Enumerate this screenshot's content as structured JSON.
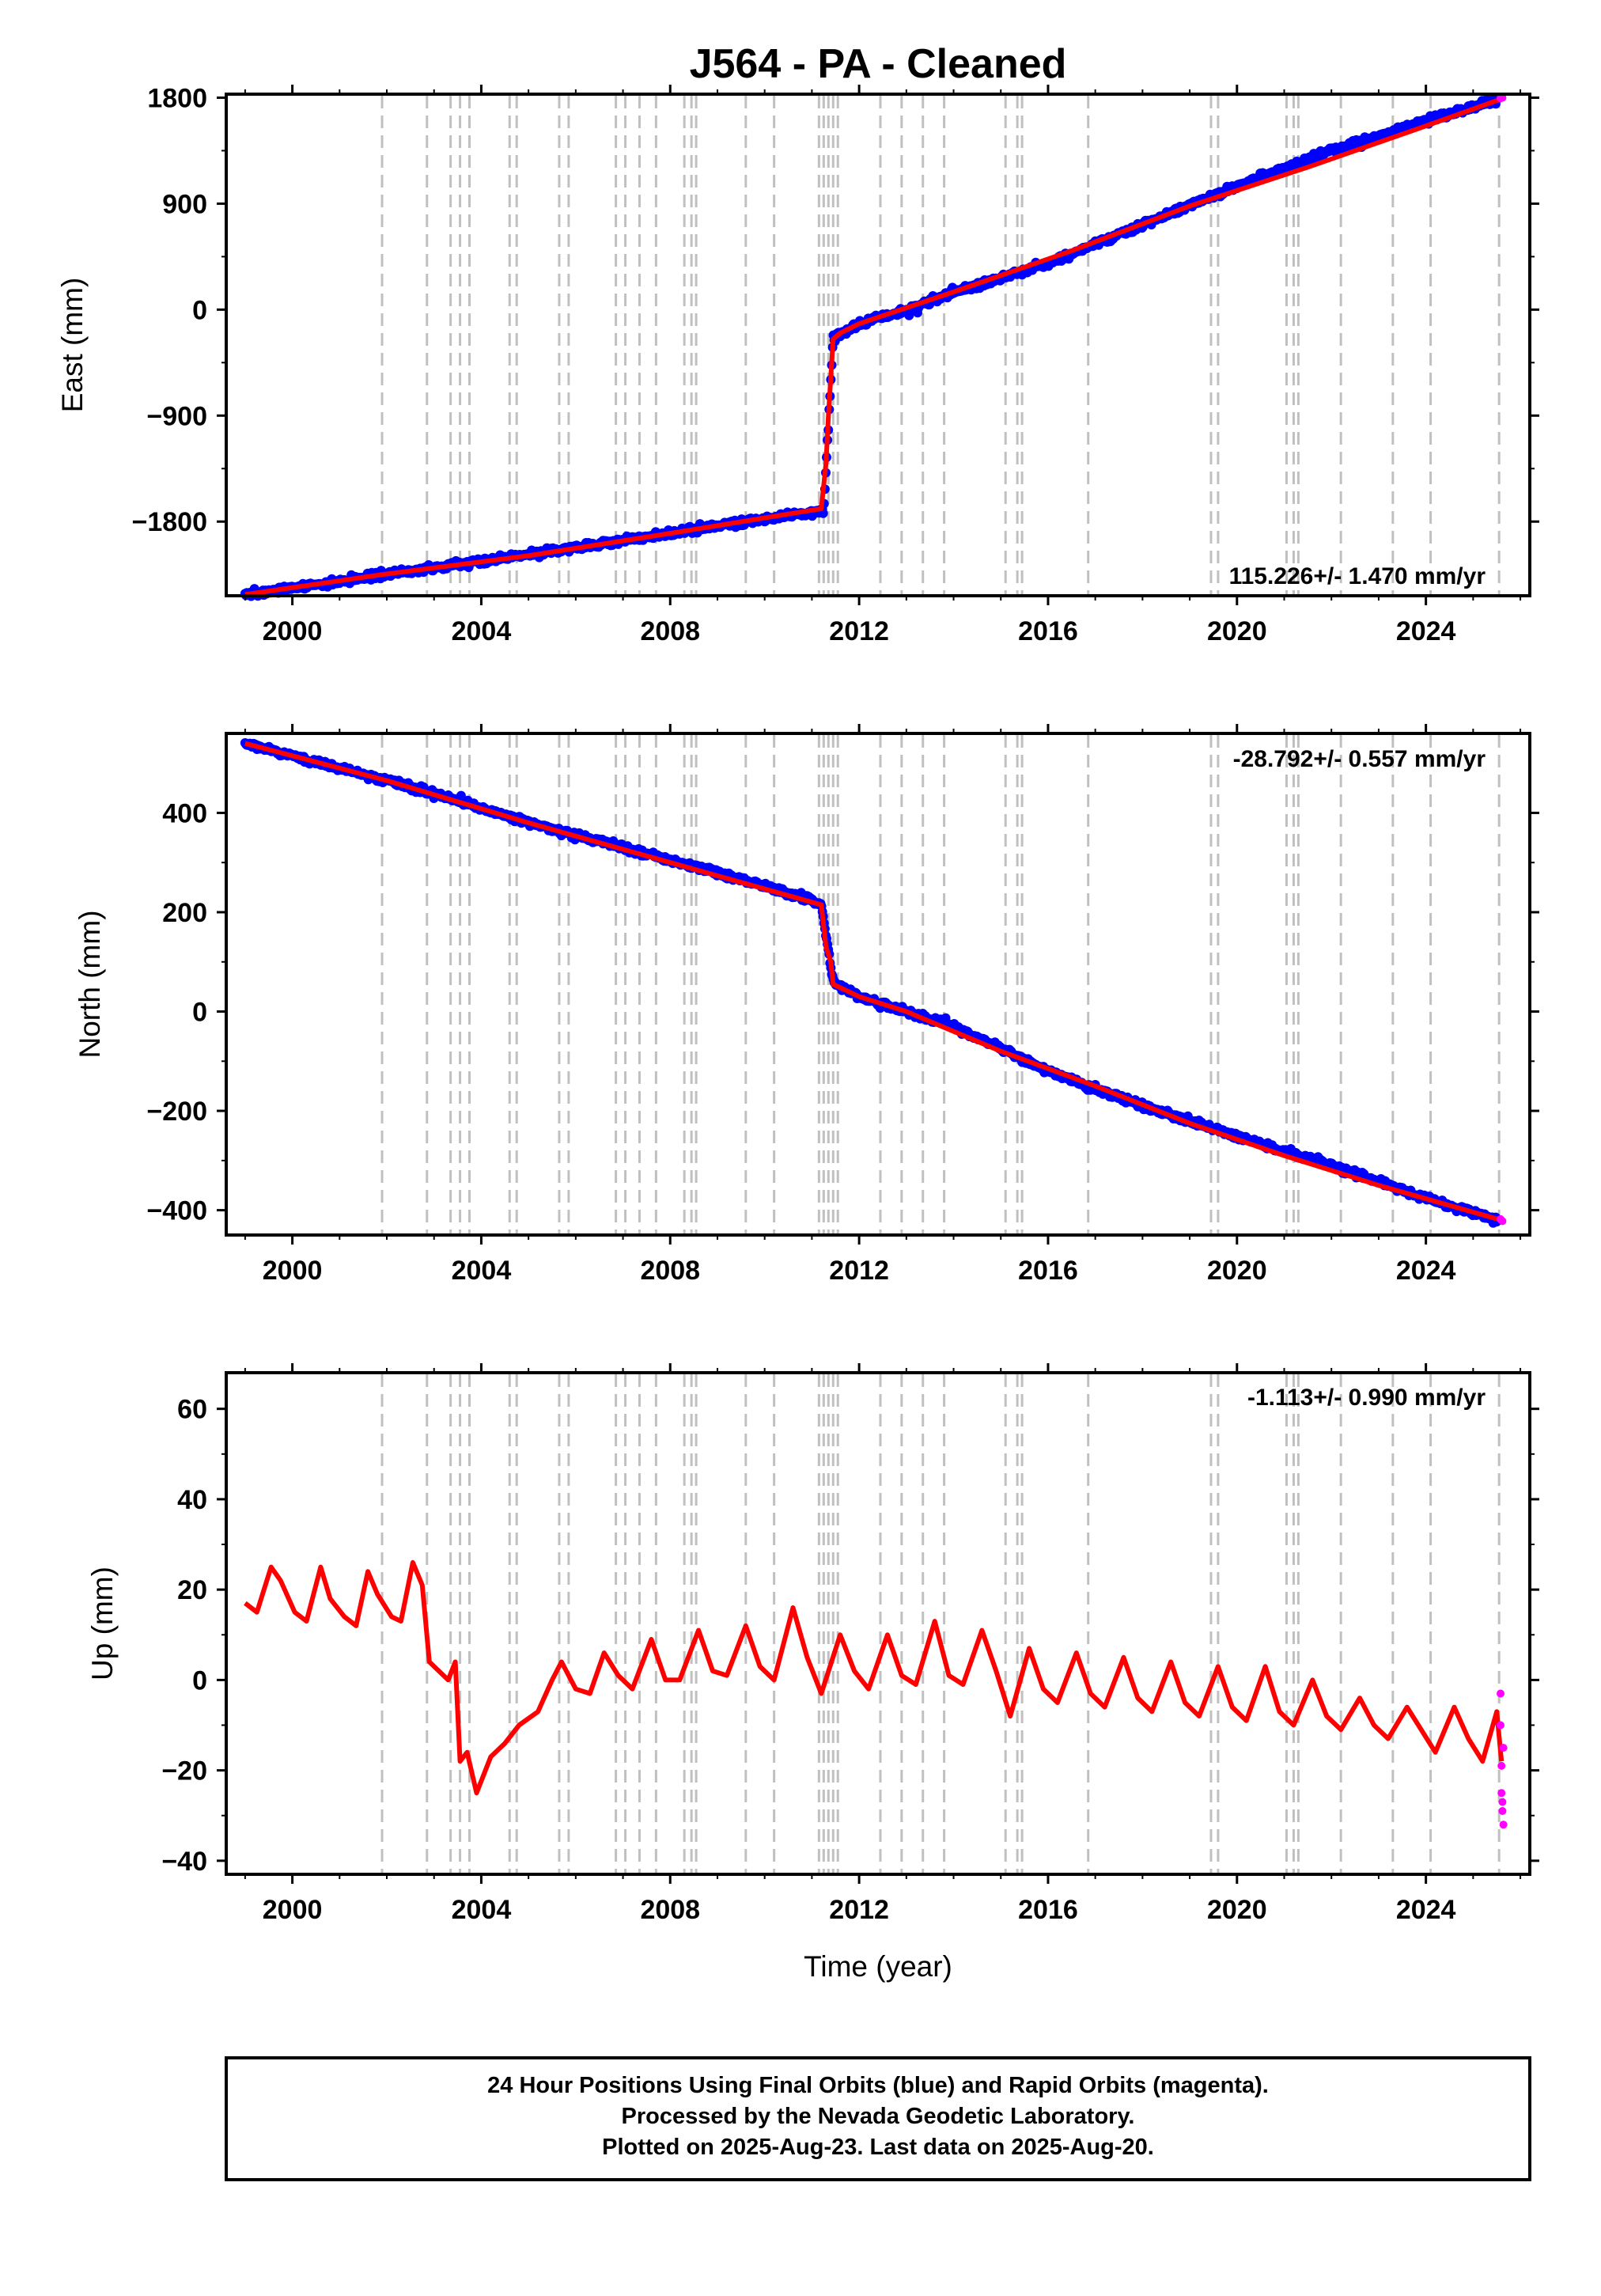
{
  "figure": {
    "title": "J564  - PA - Cleaned",
    "xlabel": "Time (year)",
    "footer_lines": [
      "24 Hour Positions Using Final Orbits (blue) and Rapid Orbits (magenta).",
      "Processed by the Nevada Geodetic Laboratory.",
      "Plotted on 2025-Aug-23. Last data on 2025-Aug-20."
    ]
  },
  "colors": {
    "final_orbits": "#0000ff",
    "rapid_orbits": "#ff00ff",
    "model": "#ff0000",
    "event_lines": "#c0c0c0"
  },
  "chart_data": [
    {
      "type": "scatter",
      "panel": "east",
      "ylabel": "East (mm)",
      "rate_text": "115.226+/- 1.470 mm/yr",
      "xlim": [
        1998.6,
        2026.2
      ],
      "ylim": [
        -2430,
        1830
      ],
      "yticks": [
        -1800,
        -900,
        0,
        900,
        1800
      ],
      "ytick_labels": [
        "−1800",
        "−900",
        "0",
        "900",
        "1800"
      ],
      "xticks": [
        2000,
        2004,
        2008,
        2012,
        2016,
        2020,
        2024
      ],
      "series": [
        {
          "type": "scatter",
          "color": "#0000ff",
          "values": [
            [
              1999.0,
              -2420
            ],
            [
              2001.0,
              -2310
            ],
            [
              2003.0,
              -2190
            ],
            [
              2005.0,
              -2080
            ],
            [
              2007.0,
              -1960
            ],
            [
              2009.0,
              -1840
            ],
            [
              2011.0,
              -1720
            ],
            [
              2011.25,
              -1700
            ],
            [
              2011.45,
              -250
            ],
            [
              2012.0,
              -120
            ],
            [
              2013.0,
              -10
            ],
            [
              2014.0,
              150
            ],
            [
              2016.0,
              390
            ],
            [
              2018.0,
              720
            ],
            [
              2020.0,
              1050
            ],
            [
              2022.0,
              1350
            ],
            [
              2024.0,
              1600
            ],
            [
              2025.5,
              1780
            ]
          ]
        },
        {
          "type": "line",
          "color": "#ff0000",
          "values": [
            [
              1999.0,
              -2420
            ],
            [
              2001.9,
              -2250
            ],
            [
              2005.0,
              -2090
            ],
            [
              2008.0,
              -1900
            ],
            [
              2011.2,
              -1690
            ],
            [
              2011.3,
              -1300
            ],
            [
              2011.35,
              -900
            ],
            [
              2011.45,
              -250
            ],
            [
              2011.6,
              -200
            ],
            [
              2012.0,
              -120
            ],
            [
              2014.0,
              150
            ],
            [
              2016.5,
              500
            ],
            [
              2019.0,
              880
            ],
            [
              2021.5,
              1210
            ],
            [
              2024.0,
              1560
            ],
            [
              2025.6,
              1790
            ]
          ]
        },
        {
          "type": "scatter",
          "color": "#ff00ff",
          "values": [
            [
              2025.58,
              1795
            ],
            [
              2025.62,
              1800
            ]
          ]
        }
      ]
    },
    {
      "type": "scatter",
      "panel": "north",
      "ylabel": "North (mm)",
      "rate_text": "-28.792+/- 0.557 mm/yr",
      "xlim": [
        1998.6,
        2026.2
      ],
      "ylim": [
        -450,
        560
      ],
      "yticks": [
        -400,
        -200,
        0,
        200,
        400
      ],
      "ytick_labels": [
        "−400",
        "−200",
        "0",
        "200",
        "400"
      ],
      "xticks": [
        2000,
        2004,
        2008,
        2012,
        2016,
        2020,
        2024
      ],
      "series": [
        {
          "type": "scatter",
          "color": "#0000ff",
          "values": [
            [
              1999.0,
              540
            ],
            [
              2001.0,
              490
            ],
            [
              2003.0,
              440
            ],
            [
              2005.0,
              380
            ],
            [
              2007.0,
              330
            ],
            [
              2009.0,
              280
            ],
            [
              2011.0,
              225
            ],
            [
              2011.2,
              215
            ],
            [
              2011.45,
              60
            ],
            [
              2012.0,
              30
            ],
            [
              2014.0,
              -30
            ],
            [
              2016.0,
              -120
            ],
            [
              2018.0,
              -190
            ],
            [
              2020.0,
              -250
            ],
            [
              2022.0,
              -310
            ],
            [
              2024.0,
              -375
            ],
            [
              2025.5,
              -420
            ]
          ]
        },
        {
          "type": "line",
          "color": "#ff0000",
          "values": [
            [
              1999.0,
              540
            ],
            [
              2002.0,
              465
            ],
            [
              2005.0,
              380
            ],
            [
              2008.0,
              300
            ],
            [
              2011.2,
              215
            ],
            [
              2011.3,
              130
            ],
            [
              2011.4,
              100
            ],
            [
              2011.45,
              55
            ],
            [
              2012.0,
              30
            ],
            [
              2013.0,
              0
            ],
            [
              2015.0,
              -80
            ],
            [
              2017.0,
              -150
            ],
            [
              2019.0,
              -225
            ],
            [
              2021.0,
              -290
            ],
            [
              2023.0,
              -350
            ],
            [
              2025.6,
              -420
            ]
          ]
        },
        {
          "type": "scatter",
          "color": "#ff00ff",
          "values": [
            [
              2025.58,
              -418
            ],
            [
              2025.62,
              -422
            ]
          ]
        }
      ]
    },
    {
      "type": "scatter",
      "panel": "up",
      "ylabel": "Up (mm)",
      "rate_text": "-1.113+/- 0.990 mm/yr",
      "xlim": [
        1998.6,
        2026.2
      ],
      "ylim": [
        -43,
        68
      ],
      "yticks": [
        -40,
        -20,
        0,
        20,
        40,
        60
      ],
      "ytick_labels": [
        "−40",
        "−20",
        "0",
        "20",
        "40",
        "60"
      ],
      "xticks": [
        2000,
        2004,
        2008,
        2012,
        2016,
        2020,
        2024
      ],
      "series": [
        {
          "type": "line",
          "color": "#ff0000",
          "values": [
            [
              1999.0,
              17
            ],
            [
              1999.25,
              15
            ],
            [
              1999.55,
              25
            ],
            [
              1999.75,
              22
            ],
            [
              2000.05,
              15
            ],
            [
              2000.3,
              13
            ],
            [
              2000.6,
              25
            ],
            [
              2000.8,
              18
            ],
            [
              2001.1,
              14
            ],
            [
              2001.35,
              12
            ],
            [
              2001.6,
              24
            ],
            [
              2001.8,
              19
            ],
            [
              2002.1,
              14
            ],
            [
              2002.3,
              13
            ],
            [
              2002.55,
              26
            ],
            [
              2002.75,
              21
            ],
            [
              2002.9,
              4
            ],
            [
              2003.3,
              0
            ],
            [
              2003.45,
              4
            ],
            [
              2003.55,
              -18
            ],
            [
              2003.7,
              -16
            ],
            [
              2003.9,
              -25
            ],
            [
              2004.2,
              -17
            ],
            [
              2004.5,
              -14
            ],
            [
              2004.8,
              -10
            ],
            [
              2005.2,
              -7
            ],
            [
              2005.5,
              0
            ],
            [
              2005.7,
              4
            ],
            [
              2006.0,
              -2
            ],
            [
              2006.3,
              -3
            ],
            [
              2006.6,
              6
            ],
            [
              2006.9,
              1
            ],
            [
              2007.2,
              -2
            ],
            [
              2007.6,
              9
            ],
            [
              2007.9,
              0
            ],
            [
              2008.2,
              0
            ],
            [
              2008.6,
              11
            ],
            [
              2008.9,
              2
            ],
            [
              2009.2,
              1
            ],
            [
              2009.6,
              12
            ],
            [
              2009.9,
              3
            ],
            [
              2010.2,
              0
            ],
            [
              2010.6,
              16
            ],
            [
              2010.9,
              5
            ],
            [
              2011.2,
              -3
            ],
            [
              2011.6,
              10
            ],
            [
              2011.9,
              2
            ],
            [
              2012.2,
              -2
            ],
            [
              2012.6,
              10
            ],
            [
              2012.9,
              1
            ],
            [
              2013.2,
              -1
            ],
            [
              2013.6,
              13
            ],
            [
              2013.9,
              1
            ],
            [
              2014.2,
              -1
            ],
            [
              2014.6,
              11
            ],
            [
              2014.9,
              2
            ],
            [
              2015.2,
              -8
            ],
            [
              2015.6,
              7
            ],
            [
              2015.9,
              -2
            ],
            [
              2016.2,
              -5
            ],
            [
              2016.6,
              6
            ],
            [
              2016.9,
              -3
            ],
            [
              2017.2,
              -6
            ],
            [
              2017.6,
              5
            ],
            [
              2017.9,
              -4
            ],
            [
              2018.2,
              -7
            ],
            [
              2018.6,
              4
            ],
            [
              2018.9,
              -5
            ],
            [
              2019.2,
              -8
            ],
            [
              2019.6,
              3
            ],
            [
              2019.9,
              -6
            ],
            [
              2020.2,
              -9
            ],
            [
              2020.6,
              3
            ],
            [
              2020.9,
              -7
            ],
            [
              2021.2,
              -10
            ],
            [
              2021.6,
              0
            ],
            [
              2021.9,
              -8
            ],
            [
              2022.2,
              -11
            ],
            [
              2022.6,
              -4
            ],
            [
              2022.9,
              -10
            ],
            [
              2023.2,
              -13
            ],
            [
              2023.6,
              -6
            ],
            [
              2023.9,
              -11
            ],
            [
              2024.2,
              -16
            ],
            [
              2024.6,
              -6
            ],
            [
              2024.9,
              -13
            ],
            [
              2025.2,
              -18
            ],
            [
              2025.5,
              -7
            ],
            [
              2025.6,
              -18
            ]
          ]
        },
        {
          "type": "scatter",
          "color": "#ff00ff",
          "values": [
            [
              2025.58,
              -3
            ],
            [
              2025.58,
              -10
            ],
            [
              2025.6,
              -19
            ],
            [
              2025.6,
              -25
            ],
            [
              2025.62,
              -27
            ],
            [
              2025.62,
              -29
            ],
            [
              2025.64,
              -32
            ],
            [
              2025.64,
              -15
            ]
          ]
        }
      ]
    }
  ]
}
